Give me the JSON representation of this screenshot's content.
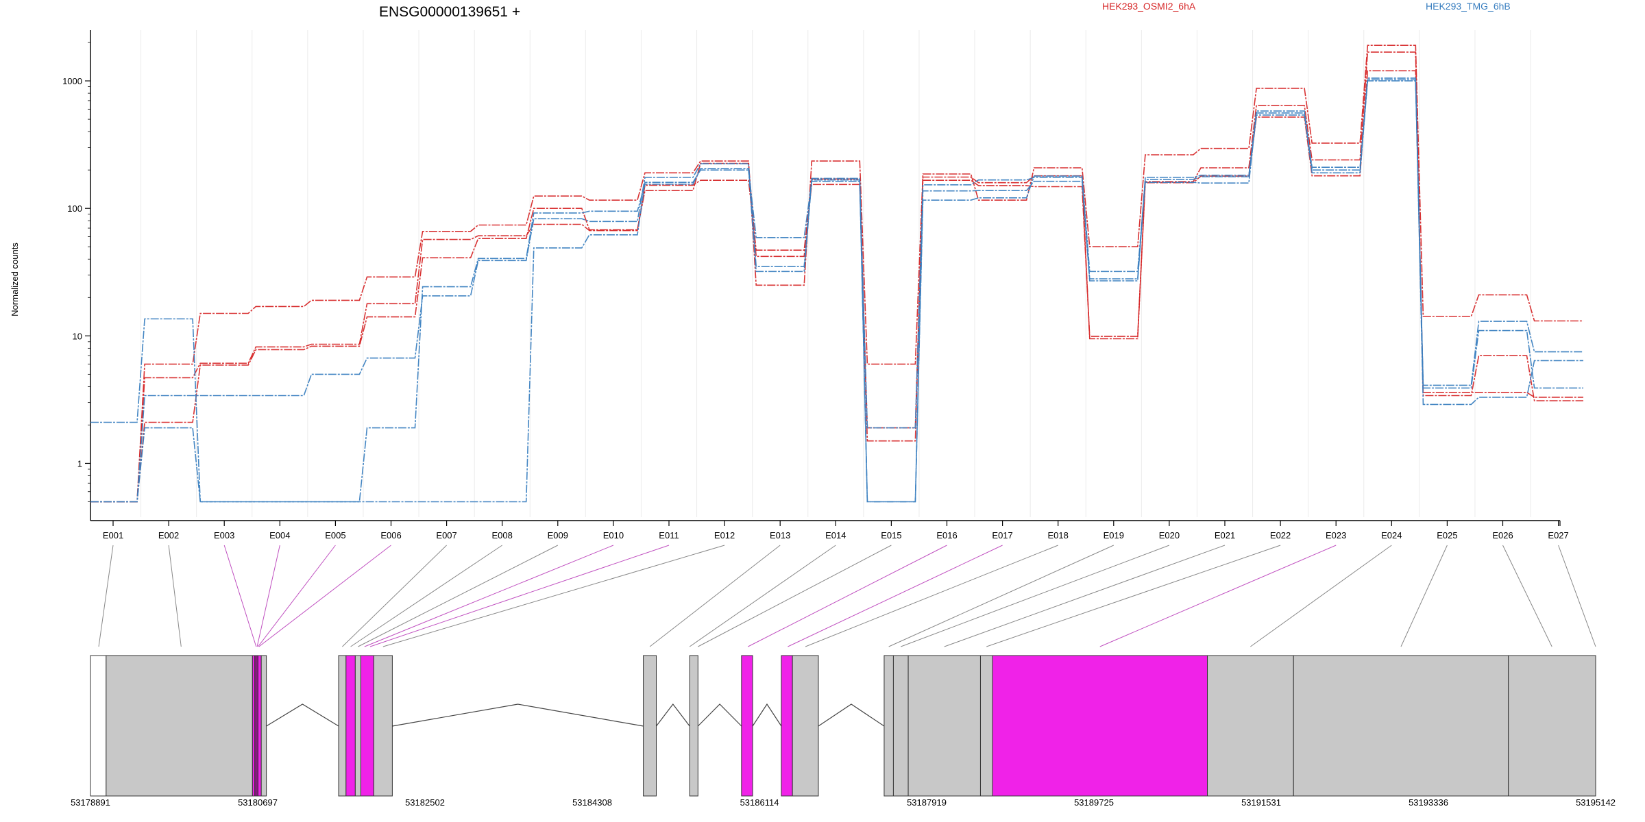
{
  "chart_data": {
    "type": "line",
    "title": "ENSG00000139651 +",
    "ylabel": "Normalized counts",
    "xlabel": "",
    "scale": "log",
    "ylim": [
      0.45,
      2500
    ],
    "y_ticks": [
      1,
      10,
      100,
      1000
    ],
    "y_tick_labels": [
      "1",
      "10",
      "100",
      "1000"
    ],
    "grid": "vertical",
    "legend": [
      {
        "name": "HEK293_OSMI2_6hA",
        "color": "#d62728"
      },
      {
        "name": "HEK293_TMG_6hB",
        "color": "#3a7fc0"
      }
    ],
    "legend_position": "top",
    "categories": [
      "E001",
      "E002",
      "E003",
      "E004",
      "E005",
      "E006",
      "E007",
      "E008",
      "E009",
      "E010",
      "E011",
      "E012",
      "E013",
      "E014",
      "E015",
      "E016",
      "E017",
      "E018",
      "E019",
      "E020",
      "E021",
      "E022",
      "E023",
      "E024",
      "E025",
      "E026",
      "E027"
    ],
    "series": [
      {
        "group": "HEK293_OSMI2_6hA",
        "color": "#d62728",
        "values": [
          0.5,
          6,
          15,
          17,
          19,
          29,
          66,
          74,
          125,
          116,
          190,
          235,
          25,
          235,
          6,
          186,
          116,
          208,
          50,
          263,
          295,
          875,
          325,
          1900,
          14.2,
          21,
          13.1
        ]
      },
      {
        "group": "HEK293_OSMI2_6hA",
        "color": "#d62728",
        "values": [
          0.5,
          4.7,
          6.1,
          8.2,
          8.6,
          17.9,
          57,
          61,
          75,
          67,
          152,
          166,
          47,
          154,
          1.9,
          166,
          151,
          148,
          9.9,
          162,
          208,
          640,
          240,
          1680,
          3.4,
          7,
          3.1
        ]
      },
      {
        "group": "HEK293_OSMI2_6hA",
        "color": "#d62728",
        "values": [
          0.5,
          2.1,
          5.9,
          7.8,
          8.3,
          14.1,
          41,
          58,
          100,
          68,
          138,
          225,
          42,
          170,
          1.5,
          176,
          159,
          180,
          9.5,
          159,
          179,
          520,
          180,
          1200,
          3.6,
          3.6,
          3.3
        ]
      },
      {
        "group": "HEK293_TMG_6hB",
        "color": "#3a7fc0",
        "values": [
          2.1,
          13.6,
          0.5,
          0.5,
          0.5,
          0.5,
          0.5,
          0.5,
          49,
          62,
          160,
          200,
          59,
          163,
          0.5,
          116,
          121,
          179,
          32,
          160,
          158,
          560,
          190,
          1000,
          4.1,
          13,
          7.5
        ]
      },
      {
        "group": "HEK293_TMG_6hB",
        "color": "#3a7fc0",
        "values": [
          0.5,
          3.4,
          3.4,
          3.4,
          5.0,
          6.7,
          20.6,
          39,
          83,
          79,
          175,
          224,
          35,
          172,
          0.5,
          137,
          138,
          163,
          28,
          169,
          177,
          580,
          200,
          1050,
          2.9,
          3.3,
          6.4
        ]
      },
      {
        "group": "HEK293_TMG_6hB",
        "color": "#3a7fc0",
        "values": [
          0.5,
          1.9,
          0.5,
          0.5,
          0.5,
          1.9,
          24.3,
          40.5,
          92,
          95,
          155,
          205,
          32,
          167,
          1.9,
          153,
          167,
          175,
          27,
          175,
          182,
          540,
          210,
          1020,
          3.9,
          11,
          3.9
        ]
      }
    ],
    "gene_model": {
      "coordinate_labels": [
        "53178891",
        "53180697",
        "53182502",
        "53184308",
        "53186114",
        "53187919",
        "53189725",
        "53191531",
        "53193336",
        "53195142"
      ],
      "coordinate_range": [
        53178891,
        53195142
      ],
      "exons": [
        {
          "start": 53178891,
          "end": 53179060,
          "color": "#ffffff",
          "mark": "E001"
        },
        {
          "start": 53179060,
          "end": 53180640,
          "color": "#c8c8c8",
          "mark": "E002"
        },
        {
          "start": 53180640,
          "end": 53180665,
          "color": "#f022e8",
          "mark": "E003"
        },
        {
          "start": 53180665,
          "end": 53180700,
          "color": "#8a1a80",
          "mark": "E004"
        },
        {
          "start": 53180700,
          "end": 53180735,
          "color": "#f022e8",
          "mark": "E005"
        },
        {
          "start": 53180735,
          "end": 53180790,
          "color": "#c8c8c8",
          "mark": "E006"
        },
        {
          "start": 53181570,
          "end": 53181650,
          "color": "#c8c8c8",
          "mark": "E007"
        },
        {
          "start": 53181650,
          "end": 53181750,
          "color": "#f022e8",
          "mark": "E008"
        },
        {
          "start": 53181750,
          "end": 53181810,
          "color": "#c8c8c8",
          "mark": "E009"
        },
        {
          "start": 53181810,
          "end": 53181950,
          "color": "#f022e8",
          "mark": "E010"
        },
        {
          "start": 53181950,
          "end": 53182150,
          "color": "#c8c8c8",
          "mark": "E011"
        },
        {
          "start": 53184860,
          "end": 53185000,
          "color": "#c8c8c8",
          "mark": "E013"
        },
        {
          "start": 53185360,
          "end": 53185450,
          "color": "#c8c8c8",
          "mark": "E014"
        },
        {
          "start": 53185920,
          "end": 53186040,
          "color": "#f022e8",
          "mark": "E015"
        },
        {
          "start": 53186350,
          "end": 53186470,
          "color": "#f022e8",
          "mark": "E016"
        },
        {
          "start": 53186470,
          "end": 53186750,
          "color": "#c8c8c8",
          "mark": "E017"
        },
        {
          "start": 53187460,
          "end": 53187560,
          "color": "#c8c8c8",
          "mark": "E018"
        },
        {
          "start": 53187560,
          "end": 53187720,
          "color": "#c8c8c8",
          "mark": "E019"
        },
        {
          "start": 53187720,
          "end": 53188500,
          "color": "#c8c8c8",
          "mark": "E020"
        },
        {
          "start": 53188500,
          "end": 53188630,
          "color": "#c8c8c8",
          "mark": "E021"
        },
        {
          "start": 53188630,
          "end": 53190950,
          "color": "#f022e8",
          "mark": "E022"
        },
        {
          "start": 53190950,
          "end": 53191880,
          "color": "#c8c8c8",
          "mark": "E023"
        },
        {
          "start": 53191880,
          "end": 53194200,
          "color": "#c8c8c8",
          "mark": "E024"
        },
        {
          "start": 53194200,
          "end": 53195142,
          "color": "#c8c8c8",
          "mark": "E025"
        }
      ],
      "introns": [
        {
          "from": 53180790,
          "to": 53181570
        },
        {
          "from": 53182150,
          "to": 53184860
        },
        {
          "from": 53185000,
          "to": 53185360
        },
        {
          "from": 53185450,
          "to": 53185920
        },
        {
          "from": 53186040,
          "to": 53186350
        },
        {
          "from": 53186750,
          "to": 53187460
        }
      ],
      "exon_links": [
        {
          "exon": "E001",
          "coord": 53178980,
          "color": "#888888"
        },
        {
          "exon": "E002",
          "coord": 53179870,
          "color": "#888888"
        },
        {
          "exon": "E003",
          "coord": 53180680,
          "color": "#c050c0"
        },
        {
          "exon": "E004",
          "coord": 53180690,
          "color": "#c050c0"
        },
        {
          "exon": "E005",
          "coord": 53180700,
          "color": "#c050c0"
        },
        {
          "exon": "E006",
          "coord": 53180710,
          "color": "#c050c0"
        },
        {
          "exon": "E007",
          "coord": 53181610,
          "color": "#888888"
        },
        {
          "exon": "E008",
          "coord": 53181700,
          "color": "#888888"
        },
        {
          "exon": "E009",
          "coord": 53181780,
          "color": "#888888"
        },
        {
          "exon": "E010",
          "coord": 53181850,
          "color": "#c050c0"
        },
        {
          "exon": "E011",
          "coord": 53181910,
          "color": "#c050c0"
        },
        {
          "exon": "E012",
          "coord": 53182050,
          "color": "#888888"
        },
        {
          "exon": "E013",
          "coord": 53184930,
          "color": "#888888"
        },
        {
          "exon": "E014",
          "coord": 53185360,
          "color": "#888888"
        },
        {
          "exon": "E015",
          "coord": 53185450,
          "color": "#888888"
        },
        {
          "exon": "E016",
          "coord": 53185990,
          "color": "#c050c0"
        },
        {
          "exon": "E017",
          "coord": 53186420,
          "color": "#c050c0"
        },
        {
          "exon": "E018",
          "coord": 53186610,
          "color": "#888888"
        },
        {
          "exon": "E019",
          "coord": 53187510,
          "color": "#888888"
        },
        {
          "exon": "E020",
          "coord": 53187640,
          "color": "#888888"
        },
        {
          "exon": "E021",
          "coord": 53188110,
          "color": "#888888"
        },
        {
          "exon": "E022",
          "coord": 53188565,
          "color": "#888888"
        },
        {
          "exon": "E023",
          "coord": 53189790,
          "color": "#c050c0"
        },
        {
          "exon": "E024",
          "coord": 53191415,
          "color": "#888888"
        },
        {
          "exon": "E025",
          "coord": 53193040,
          "color": "#888888"
        },
        {
          "exon": "E026",
          "coord": 53194670,
          "color": "#888888"
        },
        {
          "exon": "E027",
          "coord": 53195142,
          "color": "#888888"
        }
      ]
    }
  }
}
